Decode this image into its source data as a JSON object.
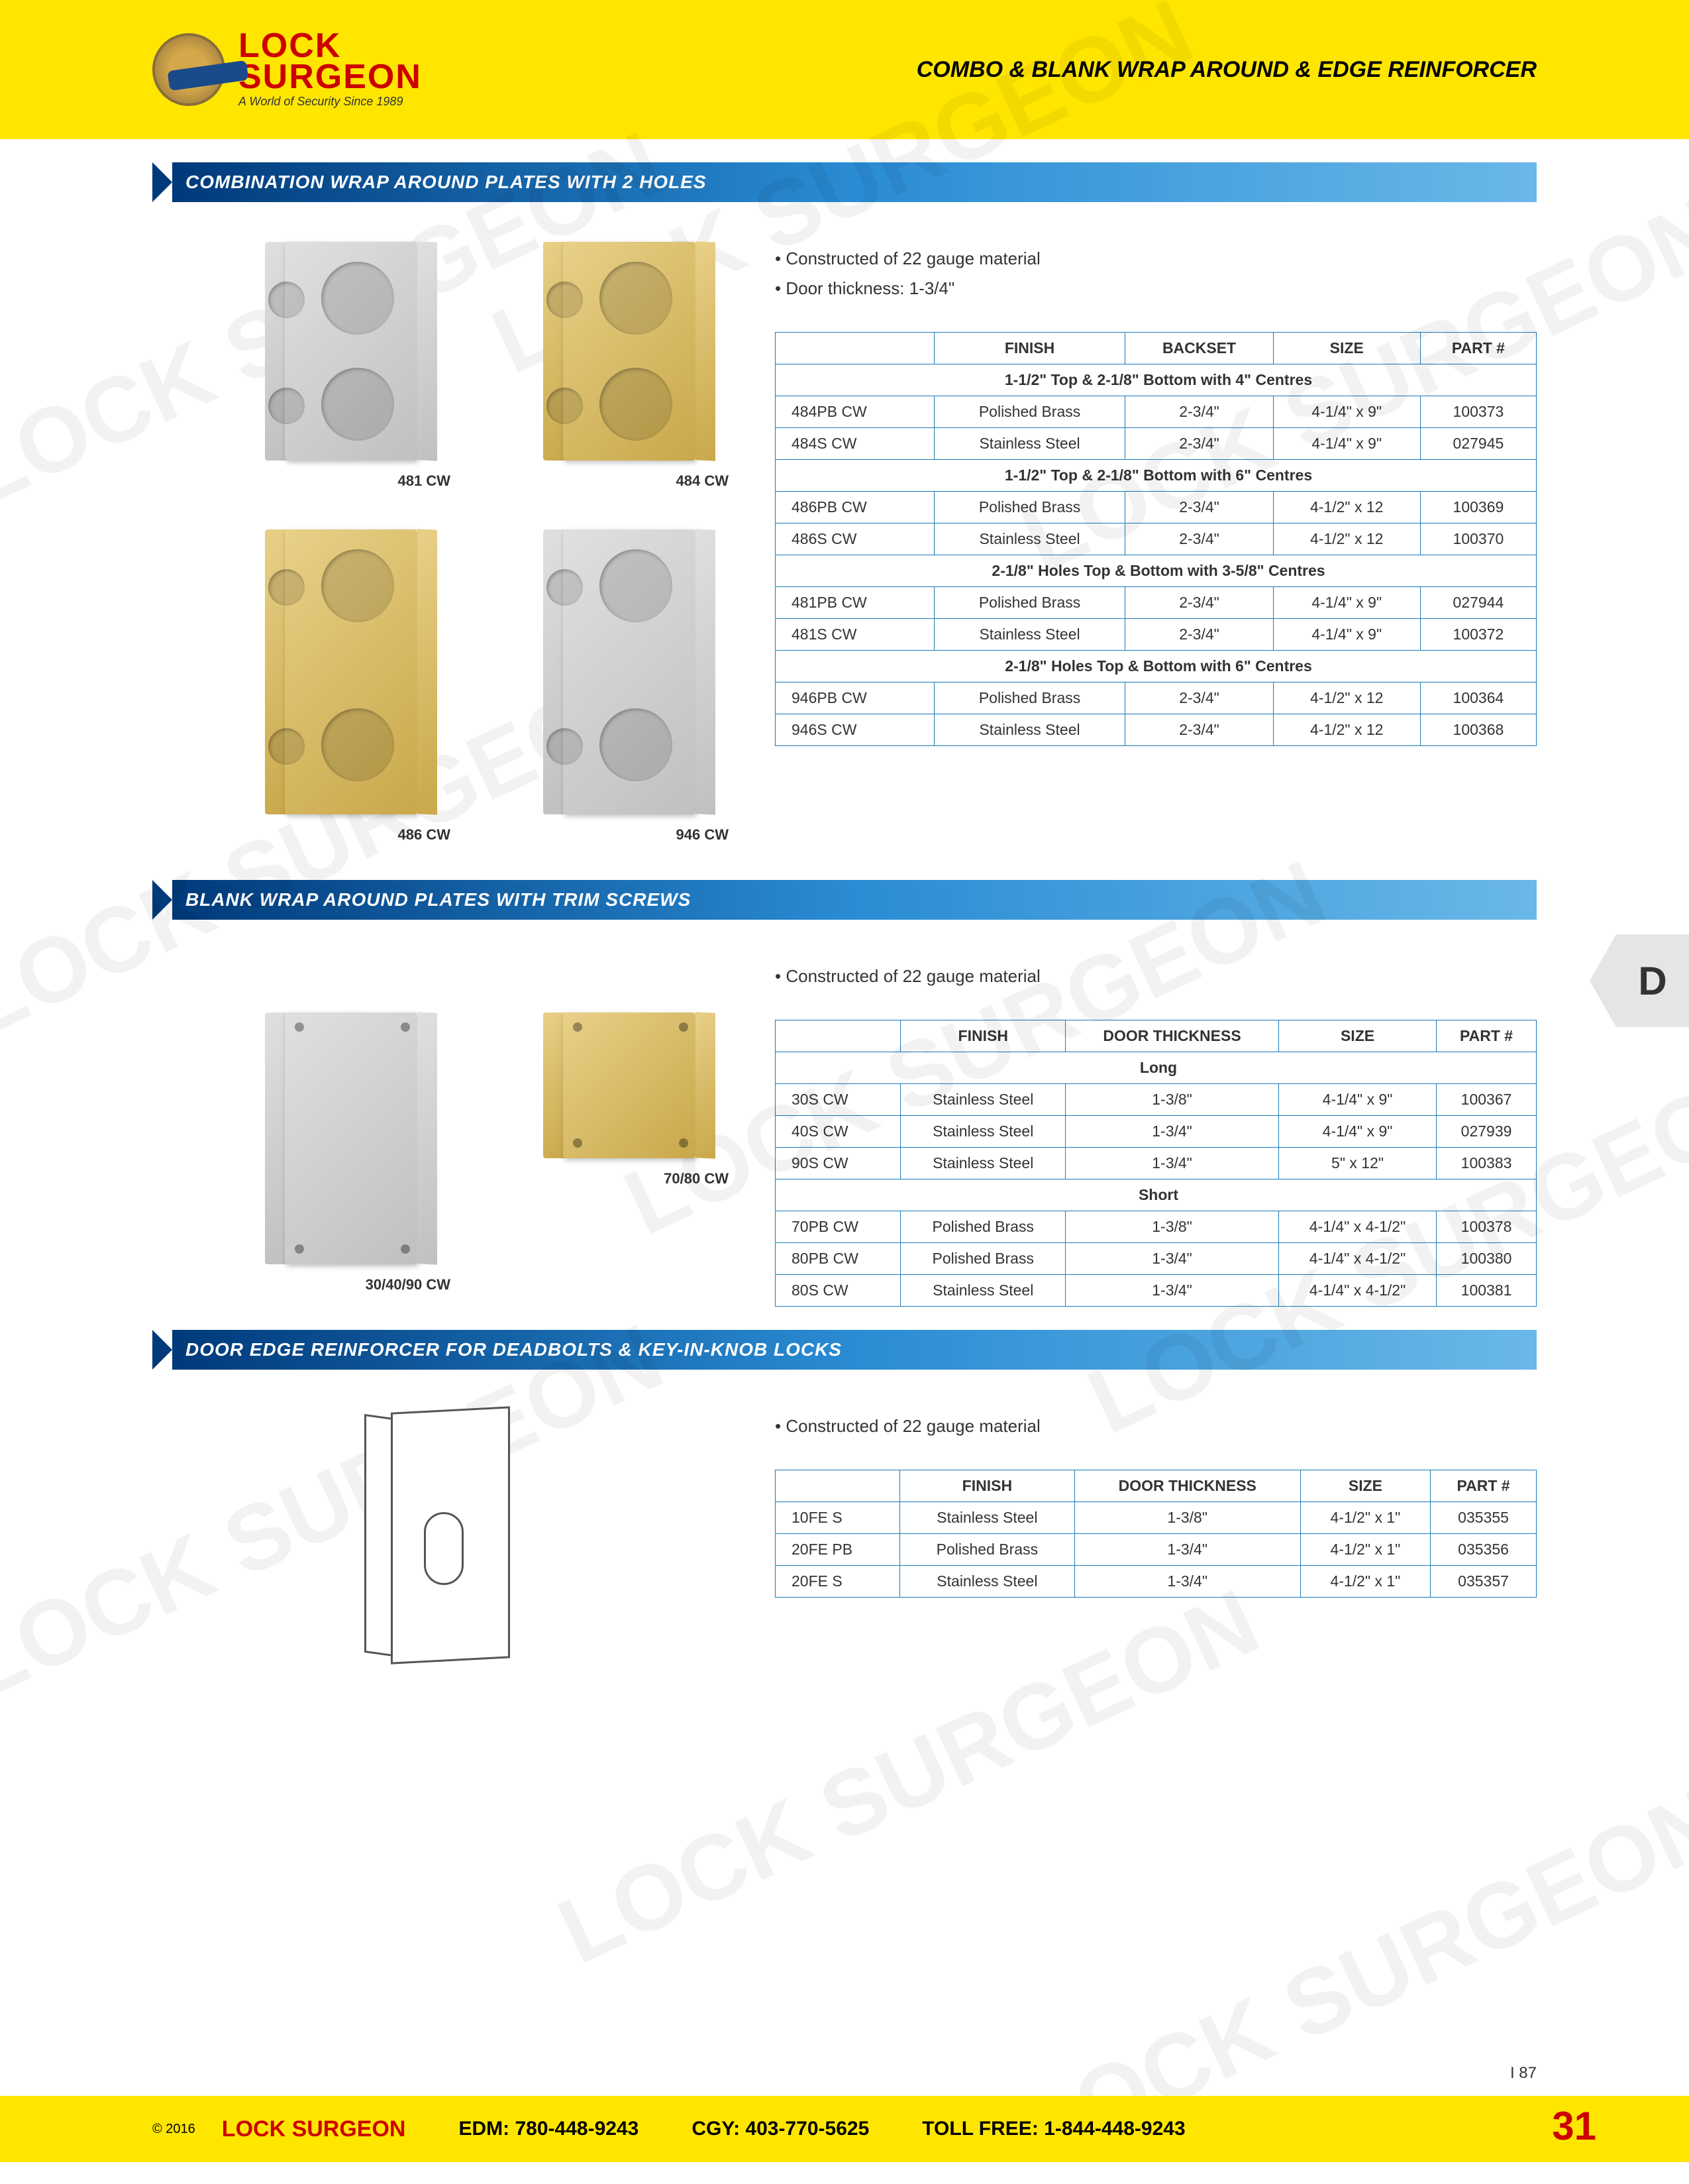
{
  "header": {
    "logo_line1": "LOCK",
    "logo_line2": "SURGEON",
    "logo_tag": "A World of Security     Since 1989",
    "page_title": "COMBO & BLANK WRAP AROUND & EDGE REINFORCER"
  },
  "section1": {
    "title": "COMBINATION WRAP AROUND PLATES WITH 2 HOLES",
    "bullets": [
      "• Constructed of 22 gauge material",
      "• Door thickness: 1-3/4\""
    ],
    "images": [
      {
        "label": "481 CW",
        "finish": "steel",
        "tall": false
      },
      {
        "label": "484 CW",
        "finish": "brass",
        "tall": false
      },
      {
        "label": "486 CW",
        "finish": "brass",
        "tall": true
      },
      {
        "label": "946 CW",
        "finish": "steel",
        "tall": true
      }
    ],
    "headers": [
      "",
      "FINISH",
      "BACKSET",
      "SIZE",
      "PART #"
    ],
    "groups": [
      {
        "sub": "1-1/2\" Top & 2-1/8\" Bottom with 4\" Centres",
        "rows": [
          [
            "484PB CW",
            "Polished Brass",
            "2-3/4\"",
            "4-1/4\" x 9\"",
            "100373"
          ],
          [
            "484S CW",
            "Stainless Steel",
            "2-3/4\"",
            "4-1/4\" x 9\"",
            "027945"
          ]
        ]
      },
      {
        "sub": "1-1/2\" Top & 2-1/8\" Bottom with 6\" Centres",
        "rows": [
          [
            "486PB CW",
            "Polished Brass",
            "2-3/4\"",
            "4-1/2\" x 12",
            "100369"
          ],
          [
            "486S CW",
            "Stainless Steel",
            "2-3/4\"",
            "4-1/2\" x 12",
            "100370"
          ]
        ]
      },
      {
        "sub": "2-1/8\" Holes Top & Bottom with 3-5/8\" Centres",
        "rows": [
          [
            "481PB CW",
            "Polished Brass",
            "2-3/4\"",
            "4-1/4\" x 9\"",
            "027944"
          ],
          [
            "481S CW",
            "Stainless Steel",
            "2-3/4\"",
            "4-1/4\" x 9\"",
            "100372"
          ]
        ]
      },
      {
        "sub": "2-1/8\" Holes Top & Bottom with 6\" Centres",
        "rows": [
          [
            "946PB CW",
            "Polished Brass",
            "2-3/4\"",
            "4-1/2\" x 12",
            "100364"
          ],
          [
            "946S CW",
            "Stainless Steel",
            "2-3/4\"",
            "4-1/2\" x 12",
            "100368"
          ]
        ]
      }
    ]
  },
  "section2": {
    "title": "BLANK WRAP AROUND PLATES WITH TRIM SCREWS",
    "bullets": [
      "• Constructed of 22 gauge material"
    ],
    "images": [
      {
        "label": "30/40/90 CW",
        "finish": "steel",
        "short": false
      },
      {
        "label": "70/80 CW",
        "finish": "brass",
        "short": true
      }
    ],
    "headers": [
      "",
      "FINISH",
      "DOOR THICKNESS",
      "SIZE",
      "PART #"
    ],
    "groups": [
      {
        "sub": "Long",
        "rows": [
          [
            "30S CW",
            "Stainless Steel",
            "1-3/8\"",
            "4-1/4\" x 9\"",
            "100367"
          ],
          [
            "40S CW",
            "Stainless Steel",
            "1-3/4\"",
            "4-1/4\" x 9\"",
            "027939"
          ],
          [
            "90S CW",
            "Stainless Steel",
            "1-3/4\"",
            "5\" x 12\"",
            "100383"
          ]
        ]
      },
      {
        "sub": "Short",
        "rows": [
          [
            "70PB CW",
            "Polished Brass",
            "1-3/8\"",
            "4-1/4\" x 4-1/2\"",
            "100378"
          ],
          [
            "80PB CW",
            "Polished Brass",
            "1-3/4\"",
            "4-1/4\" x 4-1/2\"",
            "100380"
          ],
          [
            "80S CW",
            "Stainless Steel",
            "1-3/4\"",
            "4-1/4\" x 4-1/2\"",
            "100381"
          ]
        ]
      }
    ]
  },
  "section3": {
    "title": "DOOR EDGE REINFORCER FOR DEADBOLTS & KEY-IN-KNOB LOCKS",
    "bullets": [
      "• Constructed of 22 gauge material"
    ],
    "headers": [
      "",
      "FINISH",
      "DOOR THICKNESS",
      "SIZE",
      "PART #"
    ],
    "rows": [
      [
        "10FE S",
        "Stainless Steel",
        "1-3/8\"",
        "4-1/2\" x 1\"",
        "035355"
      ],
      [
        "20FE PB",
        "Polished Brass",
        "1-3/4\"",
        "4-1/2\" x 1\"",
        "035356"
      ],
      [
        "20FE S",
        "Stainless Steel",
        "1-3/4\"",
        "4-1/2\" x 1\"",
        "035357"
      ]
    ]
  },
  "side_tab": "D",
  "footer": {
    "copy": "© 2016",
    "brand": "LOCK SURGEON",
    "edm": "EDM: 780-448-9243",
    "cgy": "CGY: 403-770-5625",
    "toll": "TOLL FREE: 1-844-448-9243",
    "page": "31",
    "small_page": "I  87"
  },
  "watermark": "LOCK SURGEON"
}
